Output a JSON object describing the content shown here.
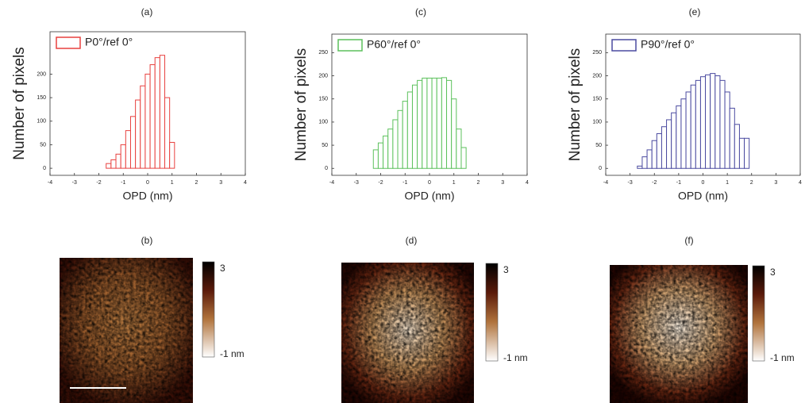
{
  "chart_data": [
    {
      "type": "histogram",
      "title": "(a)",
      "xlabel": "OPD (nm)",
      "ylabel": "Number of pixels",
      "series": [
        {
          "name": "P0°/ref 0°",
          "color": "#e8413f",
          "bins": [
            -1.7,
            -1.5,
            -1.3,
            -1.1,
            -0.9,
            -0.7,
            -0.5,
            -0.3,
            -0.1,
            0.1,
            0.3,
            0.5,
            0.7,
            0.9,
            1.1
          ],
          "values": [
            10,
            18,
            30,
            50,
            80,
            110,
            145,
            175,
            200,
            220,
            235,
            240,
            150,
            55
          ]
        }
      ],
      "xlim": [
        -4,
        4
      ],
      "xticks": [
        -4,
        -3,
        -2,
        -1,
        0,
        1,
        2,
        3,
        4
      ],
      "ylim": [
        -15,
        290
      ],
      "yticks": [
        0,
        50,
        100,
        150,
        200
      ],
      "legend": "upper left"
    },
    {
      "type": "histogram",
      "title": "(c)",
      "xlabel": "OPD (nm)",
      "ylabel": "Number of pixels",
      "series": [
        {
          "name": "P60°/ref 0°",
          "color": "#5cc15c",
          "bins": [
            -2.3,
            -2.1,
            -1.9,
            -1.7,
            -1.5,
            -1.3,
            -1.1,
            -0.9,
            -0.7,
            -0.5,
            -0.3,
            -0.1,
            0.1,
            0.3,
            0.5,
            0.7,
            0.9,
            1.1,
            1.3,
            1.5
          ],
          "values": [
            40,
            55,
            70,
            85,
            105,
            125,
            145,
            165,
            180,
            190,
            195,
            195,
            195,
            195,
            196,
            190,
            150,
            85,
            45
          ]
        }
      ],
      "xlim": [
        -4,
        4
      ],
      "xticks": [
        -4,
        -3,
        -2,
        -1,
        0,
        1,
        2,
        3,
        4
      ],
      "ylim": [
        -15,
        290
      ],
      "yticks": [
        0,
        50,
        100,
        150,
        200,
        250
      ],
      "legend": "upper left"
    },
    {
      "type": "histogram",
      "title": "(e)",
      "xlabel": "OPD (nm)",
      "ylabel": "Number of pixels",
      "series": [
        {
          "name": "P90°/ref 0°",
          "color": "#4b4ba0",
          "bins": [
            -2.7,
            -2.5,
            -2.3,
            -2.1,
            -1.9,
            -1.7,
            -1.5,
            -1.3,
            -1.1,
            -0.9,
            -0.7,
            -0.5,
            -0.3,
            -0.1,
            0.1,
            0.3,
            0.5,
            0.7,
            0.9,
            1.1,
            1.3,
            1.5,
            1.7,
            1.9
          ],
          "values": [
            5,
            25,
            40,
            60,
            75,
            90,
            105,
            120,
            135,
            150,
            165,
            180,
            190,
            198,
            202,
            205,
            200,
            190,
            165,
            130,
            95,
            65,
            65
          ]
        }
      ],
      "xlim": [
        -4,
        4
      ],
      "xticks": [
        -4,
        -3,
        -2,
        -1,
        0,
        1,
        2,
        3,
        4
      ],
      "ylim": [
        -15,
        290
      ],
      "yticks": [
        0,
        50,
        100,
        150,
        200,
        250
      ],
      "legend": "upper left"
    }
  ],
  "images": [
    {
      "label": "(b)",
      "colorbar_max": "3",
      "colorbar_min": "-1 nm"
    },
    {
      "label": "(d)",
      "colorbar_max": "3",
      "colorbar_min": "-1 nm"
    },
    {
      "label": "(f)",
      "colorbar_max": "3",
      "colorbar_min": "-1 nm"
    }
  ]
}
